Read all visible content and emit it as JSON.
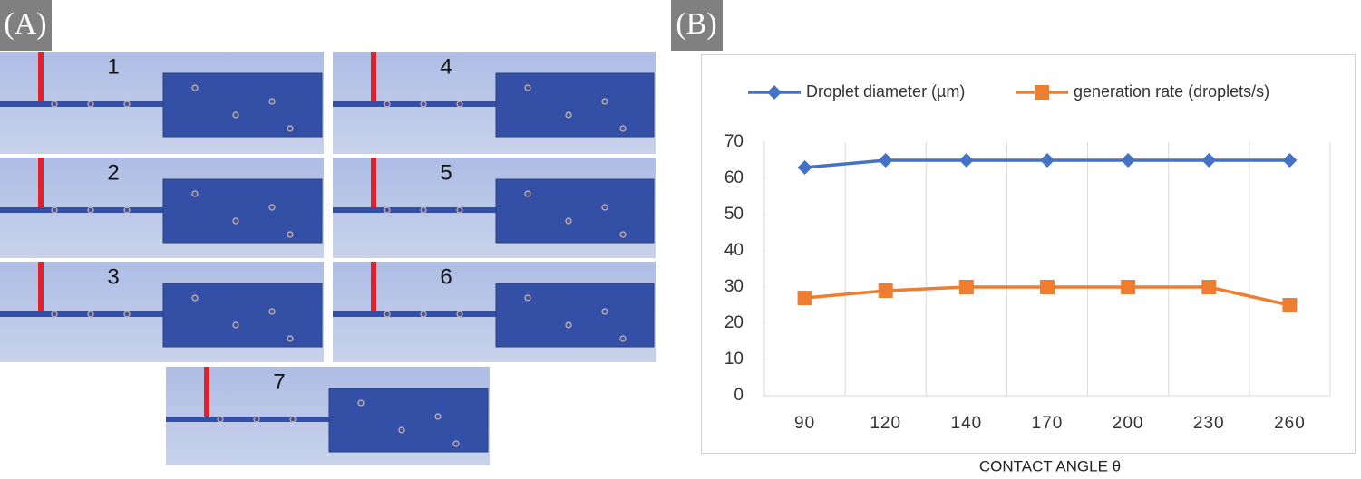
{
  "panel_labels": [
    "(A)",
    "(B)"
  ],
  "snapshots": [
    "1",
    "4",
    "2",
    "5",
    "3",
    "6",
    "7"
  ],
  "chart_data": {
    "type": "line",
    "categories": [
      "90",
      "120",
      "140",
      "170",
      "200",
      "230",
      "260"
    ],
    "series": [
      {
        "name": "Droplet diameter (µm)",
        "color": "#4472c4",
        "marker": "diamond",
        "values": [
          63,
          65,
          65,
          65,
          65,
          65,
          65
        ]
      },
      {
        "name": "generation rate (droplets/s)",
        "color": "#ed7d31",
        "marker": "square",
        "values": [
          27,
          29,
          30,
          30,
          30,
          30,
          25
        ]
      }
    ],
    "x_label": "CONTACT ANGLE θ",
    "ylim": [
      0,
      70
    ],
    "yticks": [
      0,
      10,
      20,
      30,
      40,
      50,
      60,
      70
    ],
    "grid": "vertical",
    "legend": "top"
  }
}
